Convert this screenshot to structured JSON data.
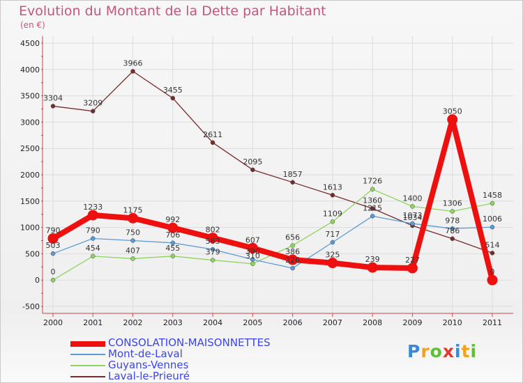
{
  "header": {
    "title": "Evolution du Montant de la Dette par Habitant",
    "subtitle": "(en €)"
  },
  "logo": {
    "text": "Proxiti",
    "colors": [
      "#3b87d8",
      "#f4a21b",
      "#5fbf35",
      "#e23a2e",
      "#3b87d8",
      "#f4a21b",
      "#5fbf35"
    ]
  },
  "chart_data": {
    "type": "line",
    "x": [
      "2000",
      "2001",
      "2002",
      "2003",
      "2004",
      "2005",
      "2006",
      "2007",
      "2008",
      "2009",
      "2010",
      "2011"
    ],
    "ylim": [
      -500,
      4500
    ],
    "yticks": [
      "-500",
      "0",
      "500",
      "1000",
      "1500",
      "2000",
      "2500",
      "3000",
      "3500",
      "4000",
      "4500"
    ],
    "grid": true,
    "legend_position": "bottom-left",
    "series": [
      {
        "name": "CONSOLATION-MAISONNETTES",
        "color": "#ee0f0f",
        "values": [
          790,
          1233,
          1175,
          992,
          802,
          607,
          386,
          325,
          239,
          227,
          3050,
          0
        ],
        "labels": [
          "790",
          "1233",
          "1175",
          "992",
          "802",
          "607",
          "386",
          "325",
          "239",
          "227",
          "3050",
          "0"
        ]
      },
      {
        "name": "Mont-de-Laval",
        "color": "#5b9bd5",
        "values": [
          503,
          790,
          750,
          706,
          583,
          390,
          226,
          717,
          1215,
          1073,
          978,
          1006
        ],
        "labels": [
          "503",
          "790",
          "750",
          "706",
          "583",
          "390",
          "226",
          "717",
          "1215",
          "1073",
          "978",
          "1006"
        ]
      },
      {
        "name": "Guyans-Vennes",
        "color": "#8ed45e",
        "values": [
          0,
          454,
          407,
          455,
          379,
          310,
          656,
          1109,
          1726,
          1400,
          1306,
          1458
        ],
        "labels": [
          "0",
          "454",
          "407",
          "455",
          "379",
          "310",
          "656",
          "1109",
          "1726",
          "1400",
          "1306",
          "1458"
        ]
      },
      {
        "name": "Laval-le-Prieuré",
        "color": "#742d2d",
        "values": [
          3304,
          3209,
          3966,
          3455,
          2611,
          2095,
          1857,
          1613,
          1360,
          1034,
          786,
          514
        ],
        "labels": [
          "3304",
          "3209",
          "3966",
          "3455",
          "2611",
          "2095",
          "1857",
          "1613",
          "1360",
          "1034",
          "786",
          "514"
        ]
      }
    ]
  }
}
